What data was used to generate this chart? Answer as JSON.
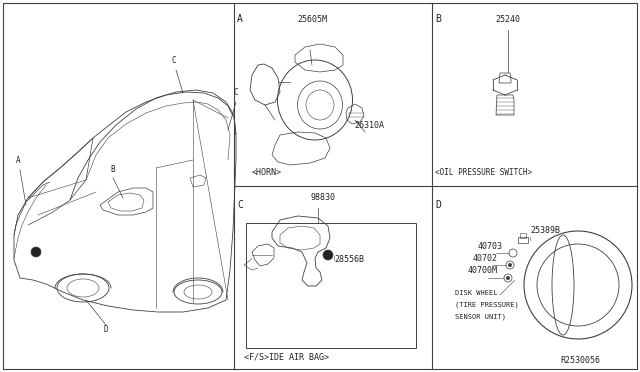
{
  "bg_color": "#ffffff",
  "line_color": "#404040",
  "text_color": "#222222",
  "fig_width": 6.4,
  "fig_height": 3.72,
  "dpi": 100,
  "part_numbers": {
    "horn_top": "25605M",
    "horn_bottom": "26310A",
    "oil_pressure": "25240",
    "airbag_top": "98830",
    "airbag_bottom": "28556B",
    "tire_top": "25389B",
    "tire_mid1": "40703",
    "tire_mid2": "40702",
    "tire_mid3": "40700M"
  },
  "labels": {
    "horn": "<HORN>",
    "oil_pressure": "<OIL PRESSURE SWITCH>",
    "airbag": "<F/S>IDE AIR BAG>",
    "disk_wheel_line1": "DISK WHEEL",
    "disk_wheel_line2": "(TIRE PRESSURE)",
    "disk_wheel_line3": "SENSOR UNIT)",
    "ref": "R2530056",
    "car_A": "A",
    "car_B": "B",
    "car_C": "C",
    "car_D": "D"
  },
  "font_sizes": {
    "section_label": 7,
    "part_number": 6,
    "caption": 6,
    "ref": 6
  }
}
